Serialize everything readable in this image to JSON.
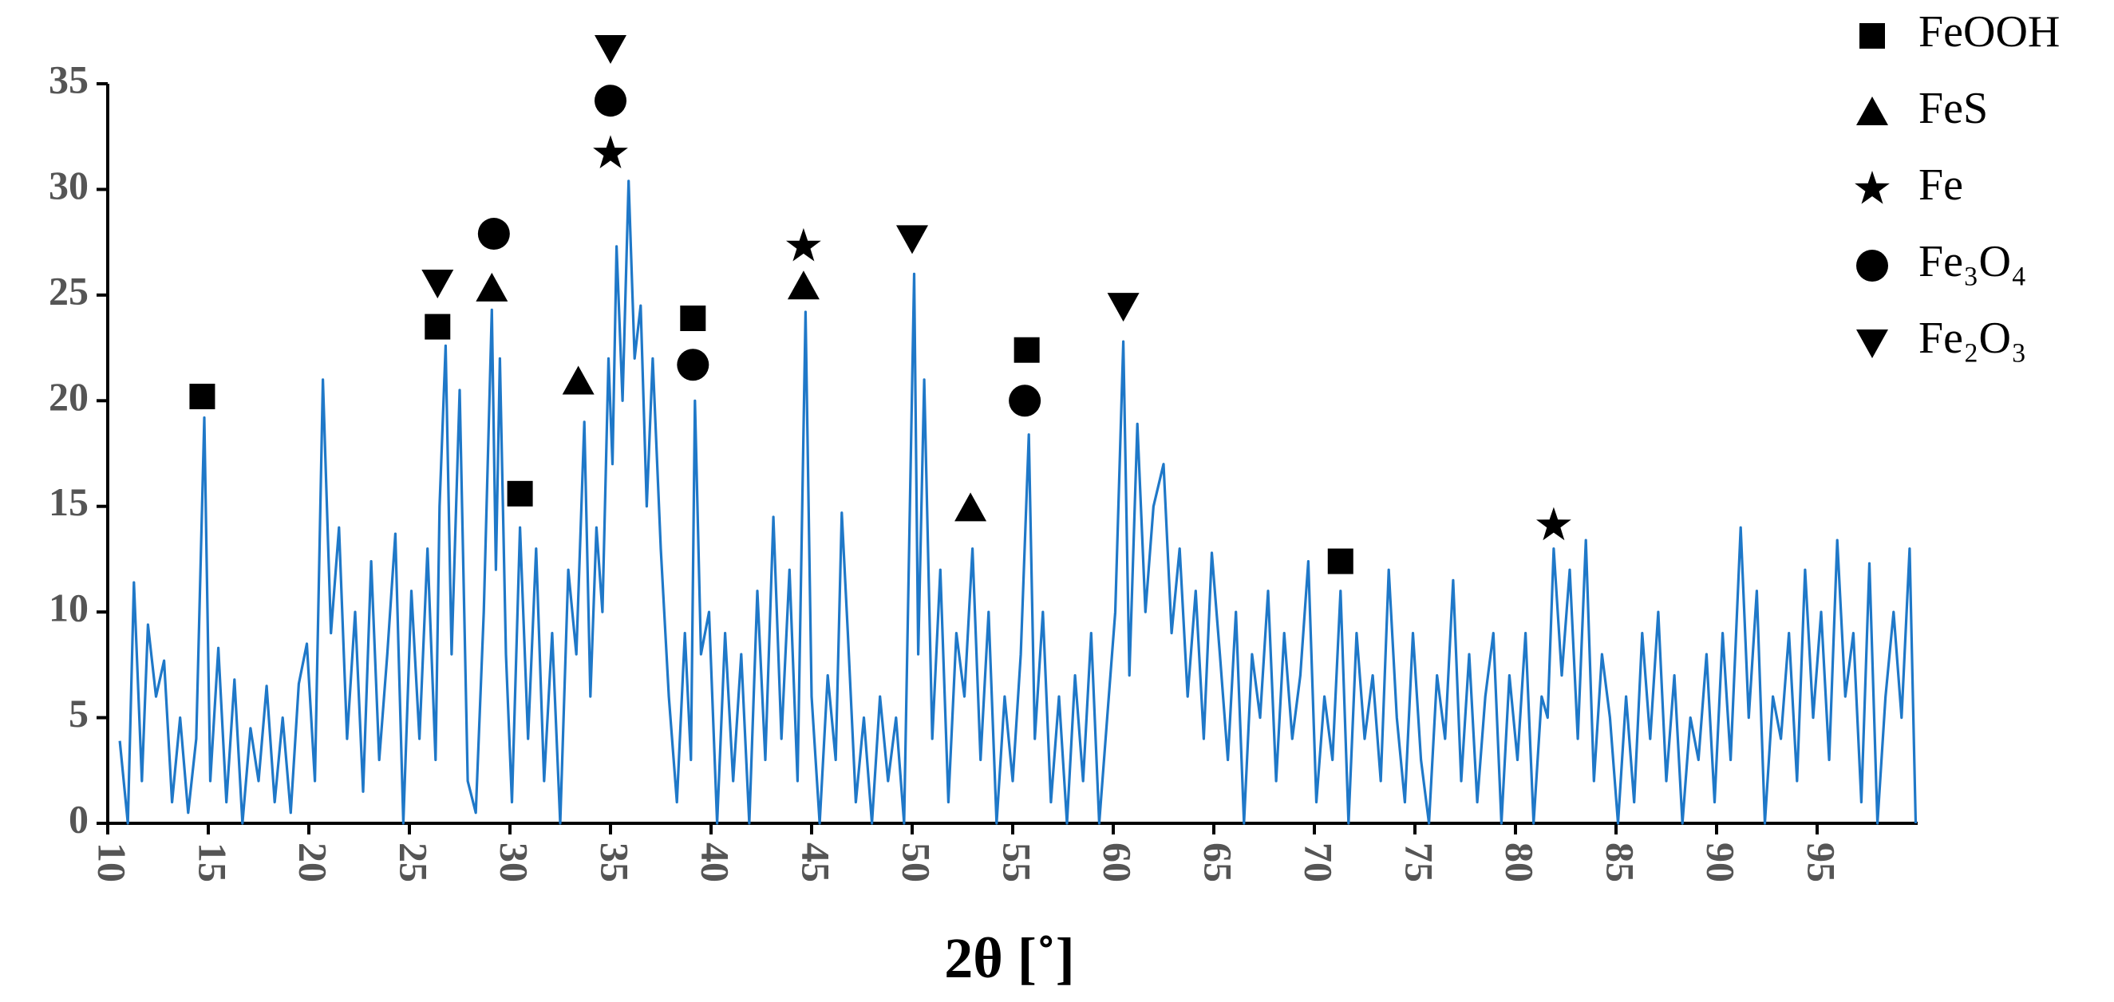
{
  "chart_data": {
    "type": "line",
    "x_label": "2θ [˚]",
    "color": "#1f78c8",
    "xlim": [
      10,
      100
    ],
    "xticks": [
      10,
      15,
      20,
      25,
      30,
      35,
      40,
      45,
      50,
      55,
      60,
      65,
      70,
      75,
      80,
      85,
      90,
      95
    ],
    "ylim": [
      0,
      35
    ],
    "yticks": [
      0,
      5,
      10,
      15,
      20,
      25,
      30,
      35
    ],
    "x": [
      10.6,
      11.0,
      11.3,
      11.7,
      12.0,
      12.4,
      12.8,
      13.2,
      13.6,
      14.0,
      14.4,
      14.8,
      15.1,
      15.5,
      15.9,
      16.3,
      16.7,
      17.1,
      17.5,
      17.9,
      18.3,
      18.7,
      19.1,
      19.5,
      19.9,
      20.3,
      20.7,
      21.1,
      21.5,
      21.9,
      22.3,
      22.7,
      23.1,
      23.5,
      23.9,
      24.3,
      24.7,
      25.1,
      25.5,
      25.9,
      26.3,
      26.5,
      26.8,
      27.1,
      27.5,
      27.9,
      28.3,
      28.7,
      29.1,
      29.3,
      29.5,
      29.8,
      30.1,
      30.5,
      30.9,
      31.3,
      31.7,
      32.1,
      32.5,
      32.9,
      33.3,
      33.7,
      34.0,
      34.3,
      34.6,
      34.9,
      35.1,
      35.3,
      35.6,
      35.9,
      36.2,
      36.5,
      36.8,
      37.1,
      37.5,
      37.9,
      38.3,
      38.7,
      39.0,
      39.2,
      39.5,
      39.9,
      40.3,
      40.7,
      41.1,
      41.5,
      41.9,
      42.3,
      42.7,
      43.1,
      43.5,
      43.9,
      44.3,
      44.7,
      45.0,
      45.4,
      45.8,
      46.2,
      46.5,
      46.8,
      47.2,
      47.6,
      48.0,
      48.4,
      48.8,
      49.2,
      49.6,
      50.1,
      50.3,
      50.6,
      51.0,
      51.4,
      51.8,
      52.2,
      52.6,
      53.0,
      53.4,
      53.8,
      54.2,
      54.6,
      55.0,
      55.4,
      55.8,
      56.1,
      56.5,
      56.9,
      57.3,
      57.7,
      58.1,
      58.5,
      58.9,
      59.3,
      59.7,
      60.1,
      60.5,
      60.8,
      61.2,
      61.6,
      62.0,
      62.5,
      62.9,
      63.3,
      63.7,
      64.1,
      64.5,
      64.9,
      65.3,
      65.7,
      66.1,
      66.5,
      66.9,
      67.3,
      67.7,
      68.1,
      68.5,
      68.9,
      69.3,
      69.7,
      70.1,
      70.5,
      70.9,
      71.3,
      71.7,
      72.1,
      72.5,
      72.9,
      73.3,
      73.7,
      74.1,
      74.5,
      74.9,
      75.3,
      75.7,
      76.1,
      76.5,
      76.9,
      77.3,
      77.7,
      78.1,
      78.5,
      78.9,
      79.3,
      79.7,
      80.1,
      80.5,
      80.9,
      81.3,
      81.6,
      81.9,
      82.3,
      82.7,
      83.1,
      83.5,
      83.9,
      84.3,
      84.7,
      85.1,
      85.5,
      85.9,
      86.3,
      86.7,
      87.1,
      87.5,
      87.9,
      88.3,
      88.7,
      89.1,
      89.5,
      89.9,
      90.3,
      90.7,
      91.2,
      91.6,
      92.0,
      92.4,
      92.8,
      93.2,
      93.6,
      94.0,
      94.4,
      94.8,
      95.2,
      95.6,
      96.0,
      96.4,
      96.8,
      97.2,
      97.6,
      98.0,
      98.4,
      98.8,
      99.2,
      99.6,
      99.9
    ],
    "values": [
      3.9,
      0,
      11.4,
      2,
      9.4,
      6,
      7.7,
      1,
      5,
      0.5,
      4,
      19.2,
      2,
      8.3,
      1,
      6.8,
      0,
      4.5,
      2,
      6.5,
      1,
      5,
      0.5,
      6.6,
      8.5,
      2,
      21,
      9,
      14,
      4,
      10,
      1.5,
      12.4,
      3,
      8,
      13.7,
      0,
      11,
      4,
      13,
      3,
      15,
      22.6,
      8,
      20.5,
      2,
      0.5,
      10,
      24.3,
      12,
      22,
      8,
      1,
      14,
      4,
      13,
      2,
      9,
      0,
      12,
      8,
      19,
      6,
      14,
      10,
      22,
      17,
      27.3,
      20,
      30.4,
      22,
      24.5,
      15,
      22,
      13,
      6,
      1,
      9,
      3,
      20,
      8,
      10,
      0,
      9,
      2,
      8,
      0,
      11,
      3,
      14.5,
      4,
      12,
      2,
      24.2,
      6,
      0,
      7,
      3,
      14.7,
      9,
      1,
      5,
      0,
      6,
      2,
      5,
      0,
      26,
      8,
      21,
      4,
      12,
      1,
      9,
      6,
      13,
      3,
      10,
      0,
      6,
      2,
      8,
      18.4,
      4,
      10,
      1,
      6,
      0,
      7,
      2,
      9,
      0,
      5,
      10,
      22.8,
      7,
      18.9,
      10,
      15,
      17,
      9,
      13,
      6,
      11,
      4,
      12.8,
      8,
      3,
      10,
      0,
      8,
      5,
      11,
      2,
      9,
      4,
      7,
      12.4,
      1,
      6,
      3,
      11,
      0,
      9,
      4,
      7,
      2,
      12,
      5,
      1,
      9,
      3,
      0,
      7,
      4,
      11.5,
      2,
      8,
      1,
      6,
      9,
      0,
      7,
      3,
      9,
      0,
      6,
      5,
      13,
      7,
      12,
      4,
      13.4,
      2,
      8,
      5,
      0,
      6,
      1,
      9,
      4,
      10,
      2,
      7,
      0,
      5,
      3,
      8,
      1,
      9,
      3,
      14,
      5,
      11,
      0,
      6,
      4,
      9,
      2,
      12,
      5,
      10,
      3,
      13.4,
      6,
      9,
      1,
      12.3,
      0,
      6,
      10,
      5,
      13,
      0
    ],
    "markers": [
      {
        "name": "FeOOH",
        "shape": "square",
        "color": "#000000",
        "x": [
          14.7,
          26.4,
          30.5,
          39.1,
          55.7,
          71.3
        ],
        "y": [
          20.2,
          23.5,
          15.6,
          23.9,
          22.4,
          12.4
        ]
      },
      {
        "name": "FeS",
        "shape": "triangle-up",
        "color": "#000000",
        "x": [
          29.1,
          33.4,
          44.6,
          52.9
        ],
        "y": [
          25.3,
          20.9,
          25.4,
          14.9
        ]
      },
      {
        "name": "Fe",
        "shape": "star",
        "color": "#000000",
        "x": [
          35.0,
          44.6,
          81.9
        ],
        "y": [
          31.7,
          27.3,
          14.1
        ]
      },
      {
        "name": "Fe₃O₄",
        "shape": "circle",
        "color": "#000000",
        "x": [
          29.2,
          35.0,
          39.1,
          55.6
        ],
        "y": [
          27.9,
          34.2,
          21.7,
          20.0
        ]
      },
      {
        "name": "Fe₂O₃",
        "shape": "triangle-down",
        "color": "#000000",
        "x": [
          26.4,
          35.0,
          50.0,
          60.5
        ],
        "y": [
          25.6,
          36.7,
          27.7,
          24.5
        ]
      }
    ],
    "legend": "upper-right"
  }
}
